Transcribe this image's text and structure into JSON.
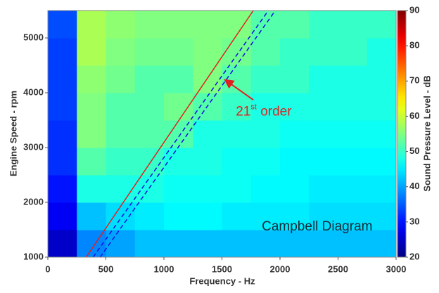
{
  "chart_data": {
    "type": "heatmap",
    "colormap": "jet",
    "xlabel": "Frequency - Hz",
    "ylabel": "Engine Speed - rpm",
    "clabel": "Sound Pressure Level - dB",
    "xlim": [
      0,
      3000
    ],
    "ylim": [
      1000,
      5500
    ],
    "clim": [
      20,
      90
    ],
    "xticks": [
      0,
      500,
      1000,
      1500,
      2000,
      2500,
      3000
    ],
    "yticks": [
      1000,
      2000,
      3000,
      4000,
      5000
    ],
    "cticks": [
      20,
      30,
      40,
      50,
      60,
      70,
      80,
      90
    ],
    "xbins": [
      0,
      250,
      500,
      750,
      1000,
      1250,
      1500,
      1750,
      2000,
      2250,
      2500,
      2750,
      3000
    ],
    "ybins": [
      1000,
      1500,
      2000,
      2500,
      3000,
      3500,
      4000,
      4500,
      5000,
      5500
    ],
    "values": [
      [
        25,
        38,
        40,
        42,
        42,
        42,
        42,
        42,
        42,
        42,
        42,
        42
      ],
      [
        28,
        42,
        44,
        45,
        46,
        46,
        45,
        45,
        45,
        44,
        44,
        44
      ],
      [
        30,
        48,
        48,
        48,
        47,
        47,
        47,
        46,
        46,
        45,
        45,
        45
      ],
      [
        32,
        52,
        50,
        50,
        48,
        48,
        47,
        47,
        46,
        46,
        46,
        46
      ],
      [
        32,
        55,
        52,
        52,
        52,
        48,
        48,
        48,
        47,
        47,
        47,
        47
      ],
      [
        33,
        55,
        52,
        52,
        54,
        52,
        50,
        48,
        48,
        48,
        48,
        48
      ],
      [
        33,
        56,
        54,
        52,
        52,
        55,
        52,
        50,
        50,
        48,
        48,
        48
      ],
      [
        33,
        58,
        55,
        54,
        54,
        55,
        54,
        52,
        50,
        50,
        50,
        48
      ],
      [
        34,
        58,
        56,
        55,
        55,
        55,
        55,
        52,
        52,
        50,
        50,
        50
      ]
    ],
    "lines": [
      {
        "x": [
          330,
          1770
        ],
        "y": [
          1000,
          5500
        ],
        "color": "#e02020",
        "dash": false
      },
      {
        "x": [
          390,
          1900
        ],
        "y": [
          1000,
          5500
        ],
        "color": "#1010e0",
        "dash": true
      },
      {
        "x": [
          450,
          1960
        ],
        "y": [
          1000,
          5500
        ],
        "color": "#1010e0",
        "dash": true
      }
    ],
    "annotations": [
      {
        "parts": [
          "21",
          "st",
          " order"
        ],
        "x": 1860,
        "y": 3650,
        "color": "#e02020",
        "arrow": {
          "x": [
            1770,
            1530
          ],
          "y": [
            3870,
            4230
          ]
        }
      },
      {
        "parts": [
          "Campbell Diagram"
        ],
        "x": 2320,
        "y": 1550,
        "color": "#1a2a3a"
      }
    ]
  }
}
